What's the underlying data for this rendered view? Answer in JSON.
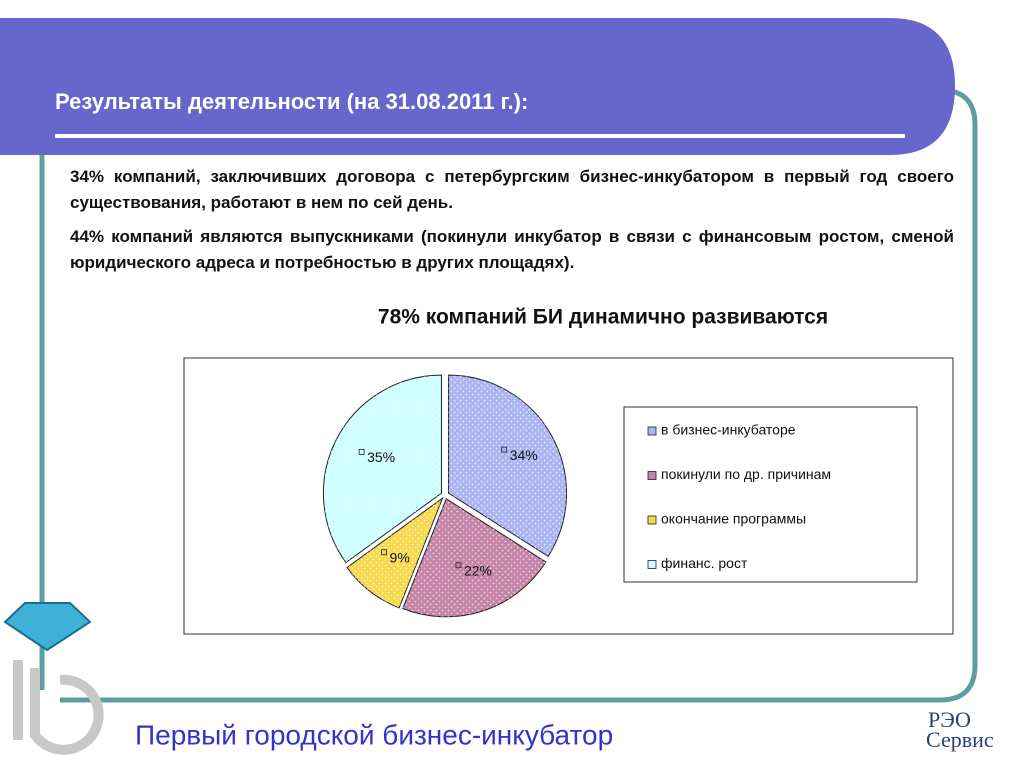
{
  "header": {
    "title": "Результаты деятельности (на 31.08.2011 г.):"
  },
  "paragraphs": [
    "34% компаний, заключивших договора с петербургским бизнес-инкубатором в первый год своего существования, работают в нем по сей день.",
    "44% компаний являются выпускниками (покинули инкубатор в связи с финансовым ростом, сменой юридического адреса и потребностью в других площадях)."
  ],
  "footer": {
    "title": "Первый городской бизнес-инкубатор"
  },
  "chart_data": {
    "type": "pie",
    "title": "78% компаний БИ динамично развиваются",
    "categories": [
      "в бизнес-инкубаторе",
      "покинули по др. причинам",
      "окончание программы",
      "финанс. рост"
    ],
    "values": [
      34,
      22,
      9,
      35
    ],
    "value_labels": [
      "34%",
      "22%",
      "9%",
      "35%"
    ],
    "colors": [
      "#aab4f2",
      "#c583a8",
      "#f6d94c",
      "#ccffff"
    ],
    "legend": "right"
  }
}
